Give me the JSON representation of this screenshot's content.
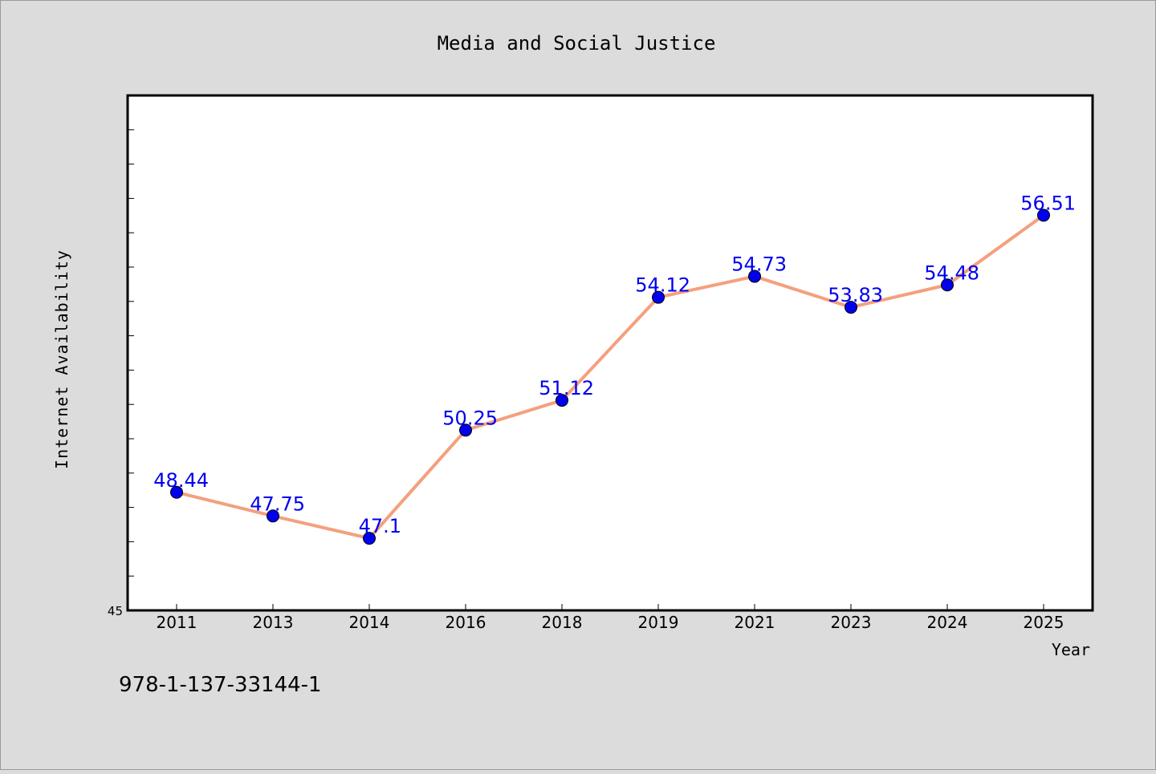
{
  "chart_data": {
    "type": "line",
    "title": "Media and Social Justice",
    "xlabel": "Year",
    "ylabel": "Internet Availability",
    "categories": [
      "2011",
      "2013",
      "2014",
      "2016",
      "2018",
      "2019",
      "2021",
      "2023",
      "2024",
      "2025"
    ],
    "series": [
      {
        "values": [
          48.44,
          47.75,
          47.1,
          50.25,
          51.12,
          54.12,
          54.73,
          53.83,
          54.48,
          56.51
        ],
        "labels": [
          "48.44",
          "47.75",
          "47.1",
          "50.25",
          "51.12",
          "54.12",
          "54.73",
          "53.83",
          "54.48",
          "56.51"
        ],
        "line_color": "#f4a07e",
        "marker_color": "#0000ee",
        "label_color": "#0000ee"
      }
    ],
    "ylim": [
      45,
      60
    ],
    "y_ticks_labeled": [
      {
        "value": 45,
        "label": "45"
      }
    ],
    "grid": false,
    "legend": "none"
  },
  "footer": {
    "isbn": "978-1-137-33144-1"
  },
  "colors": {
    "background": "#dcdcdc",
    "plot_background": "#ffffff",
    "axis": "#000000"
  }
}
